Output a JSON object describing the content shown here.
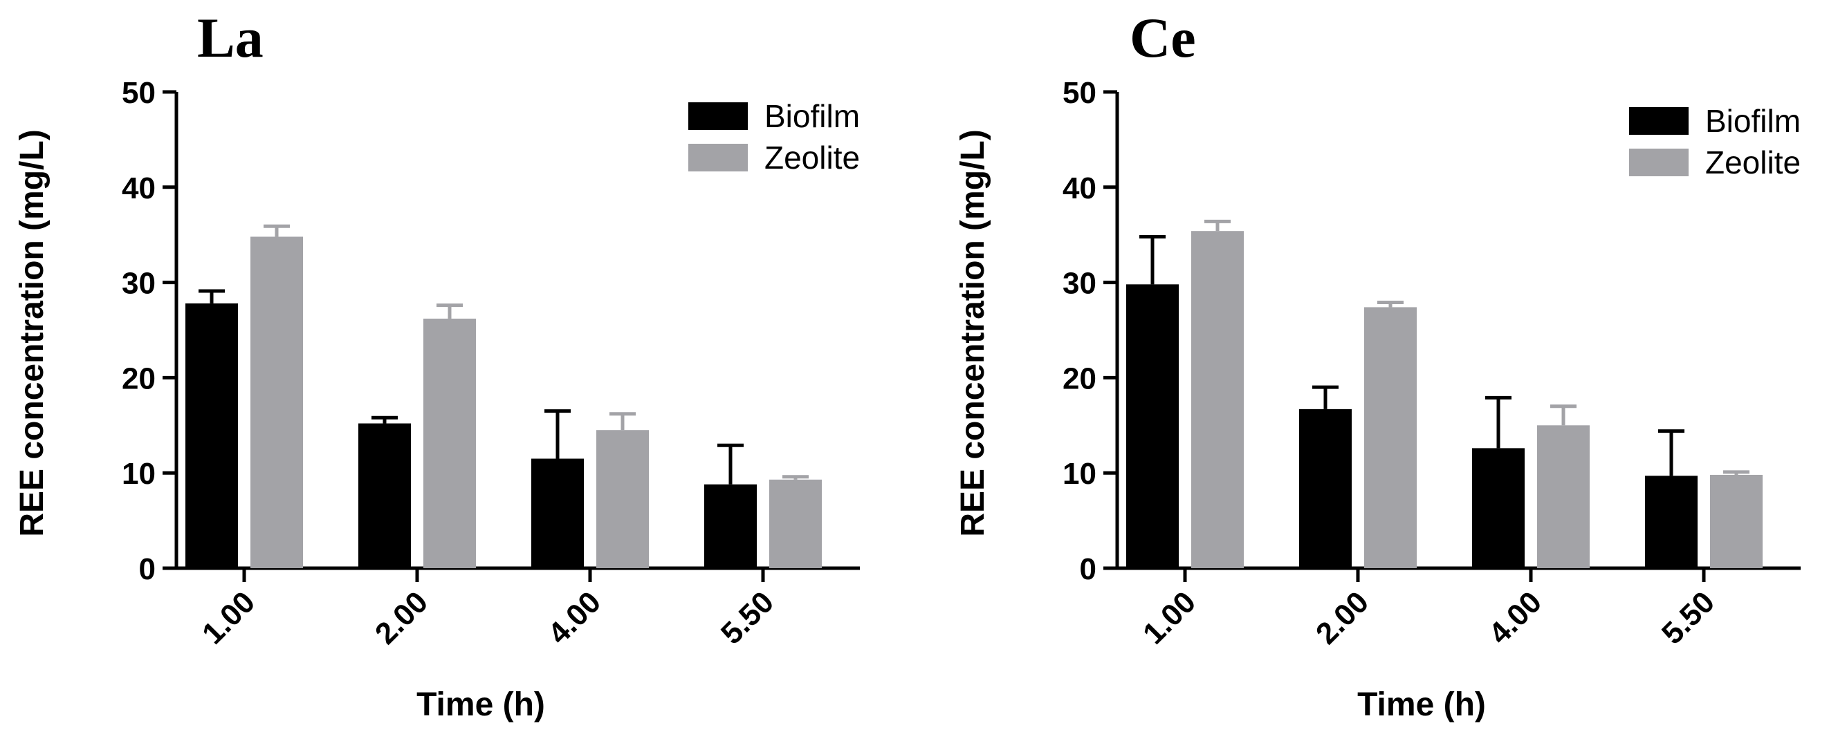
{
  "chart_data": [
    {
      "type": "bar",
      "title": "La",
      "xlabel": "Time (h)",
      "ylabel": "REE concentration (mg/L)",
      "categories": [
        "1.00",
        "2.00",
        "4.00",
        "5.50"
      ],
      "ylim": [
        0,
        50
      ],
      "yticks": [
        0,
        10,
        20,
        30,
        40,
        50
      ],
      "legend_position": "top-right",
      "series": [
        {
          "name": "Biofilm",
          "color": "#000000",
          "values": [
            27.8,
            15.2,
            11.5,
            8.8
          ],
          "errors": [
            1.3,
            0.6,
            5.0,
            4.1
          ]
        },
        {
          "name": "Zeolite",
          "color": "#a3a3a7",
          "values": [
            34.8,
            26.2,
            14.5,
            9.3
          ],
          "errors": [
            1.1,
            1.4,
            1.7,
            0.3
          ]
        }
      ]
    },
    {
      "type": "bar",
      "title": "Ce",
      "xlabel": "Time (h)",
      "ylabel": "REE concentration (mg/L)",
      "categories": [
        "1.00",
        "2.00",
        "4.00",
        "5.50"
      ],
      "ylim": [
        0,
        50
      ],
      "yticks": [
        0,
        10,
        20,
        30,
        40,
        50
      ],
      "legend_position": "top-right",
      "series": [
        {
          "name": "Biofilm",
          "color": "#000000",
          "values": [
            29.8,
            16.7,
            12.6,
            9.7
          ],
          "errors": [
            5.0,
            2.3,
            5.3,
            4.7
          ]
        },
        {
          "name": "Zeolite",
          "color": "#a3a3a7",
          "values": [
            35.4,
            27.4,
            15.0,
            9.8
          ],
          "errors": [
            1.0,
            0.5,
            2.0,
            0.3
          ]
        }
      ]
    }
  ]
}
